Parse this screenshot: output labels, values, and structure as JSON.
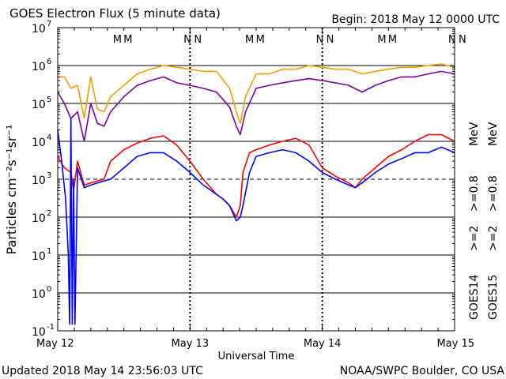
{
  "header": {
    "title": "GOES Electron Flux (5 minute data)",
    "begin": "Begin: 2018 May 12 0000 UTC"
  },
  "footer": {
    "updated": "Updated 2018 May 14 23:56:03 UTC",
    "credit": "NOAA/SWPC Boulder, CO USA"
  },
  "colors": {
    "goes14_2mev": "#0000ff",
    "goes15_2mev": "#ff0000",
    "goes14_08mev": "#7a00a0",
    "goes15_08mev": "#f0a000",
    "marker_m": "#0000ff",
    "marker_n_first": "#0000ff",
    "marker_n_second": "#ff0000"
  },
  "chart_data": {
    "type": "line",
    "xlabel": "Universal Time",
    "ylabel": "Particles cm⁻²s⁻¹sr⁻¹",
    "x_unit": "days since 2018 May 12 0000 UTC",
    "xlim": [
      0,
      3
    ],
    "ylim": [
      0.1,
      10000000
    ],
    "yscale": "log",
    "x_ticks": [
      {
        "x": 0,
        "label": "May 12"
      },
      {
        "x": 1,
        "label": "May 13"
      },
      {
        "x": 2,
        "label": "May 14"
      },
      {
        "x": 3,
        "label": "May 15"
      }
    ],
    "y_ticks": [
      {
        "exp": -1,
        "label": "10"
      },
      {
        "exp": 0,
        "label": "10"
      },
      {
        "exp": 1,
        "label": "10"
      },
      {
        "exp": 2,
        "label": "10"
      },
      {
        "exp": 3,
        "label": "10"
      },
      {
        "exp": 4,
        "label": "10"
      },
      {
        "exp": 5,
        "label": "10"
      },
      {
        "exp": 6,
        "label": "10"
      },
      {
        "exp": 7,
        "label": "10"
      }
    ],
    "y_tick_exponents": [
      "-1",
      "0",
      "1",
      "2",
      "3",
      "4",
      "5",
      "6",
      "7"
    ],
    "threshold_line": 1000,
    "markers": [
      {
        "x": 0.43,
        "label": "M",
        "color": "#0000ff"
      },
      {
        "x": 0.5,
        "label": "M",
        "color": "#ff0000"
      },
      {
        "x": 0.96,
        "label": "N",
        "color": "#0000ff"
      },
      {
        "x": 1.03,
        "label": "N",
        "color": "#ff0000"
      },
      {
        "x": 1.43,
        "label": "M",
        "color": "#0000ff"
      },
      {
        "x": 1.5,
        "label": "M",
        "color": "#ff0000"
      },
      {
        "x": 1.96,
        "label": "N",
        "color": "#0000ff"
      },
      {
        "x": 2.03,
        "label": "N",
        "color": "#ff0000"
      },
      {
        "x": 2.43,
        "label": "M",
        "color": "#0000ff"
      },
      {
        "x": 2.5,
        "label": "M",
        "color": "#ff0000"
      },
      {
        "x": 2.96,
        "label": "N",
        "color": "#0000ff"
      },
      {
        "x": 3.03,
        "label": "N",
        "color": "#ff0000"
      }
    ],
    "legend": {
      "placement": "right",
      "groups": [
        {
          "label": "GOES14",
          "items": [
            {
              "label": ">=2",
              "color": "#0000ff"
            },
            {
              "label": ">=0.8",
              "color": "#7a00a0"
            }
          ],
          "unit": "MeV"
        },
        {
          "label": "GOES15",
          "items": [
            {
              "label": ">=2",
              "color": "#ff0000"
            },
            {
              "label": ">=0.8",
              "color": "#f0a000"
            }
          ],
          "unit": "MeV"
        }
      ]
    },
    "series": [
      {
        "name": "GOES15 >=0.8 MeV",
        "color": "#f0a000",
        "x": [
          0.0,
          0.05,
          0.1,
          0.15,
          0.2,
          0.25,
          0.3,
          0.35,
          0.4,
          0.5,
          0.6,
          0.7,
          0.8,
          0.9,
          1.0,
          1.1,
          1.2,
          1.3,
          1.35,
          1.38,
          1.42,
          1.5,
          1.6,
          1.7,
          1.8,
          1.9,
          2.0,
          2.1,
          2.2,
          2.3,
          2.4,
          2.5,
          2.6,
          2.7,
          2.8,
          2.9,
          3.0
        ],
        "values": [
          500000,
          500000,
          250000,
          300000,
          40000,
          500000,
          70000,
          60000,
          150000,
          300000,
          600000,
          800000,
          1000000,
          900000,
          800000,
          700000,
          700000,
          250000,
          60000,
          30000,
          150000,
          600000,
          600000,
          800000,
          800000,
          1000000,
          900000,
          800000,
          800000,
          600000,
          700000,
          800000,
          900000,
          900000,
          1000000,
          1100000,
          900000
        ]
      },
      {
        "name": "GOES14 >=0.8 MeV",
        "color": "#7a00a0",
        "x": [
          0.0,
          0.05,
          0.1,
          0.15,
          0.2,
          0.25,
          0.3,
          0.35,
          0.4,
          0.5,
          0.6,
          0.7,
          0.8,
          0.9,
          1.0,
          1.1,
          1.2,
          1.3,
          1.35,
          1.38,
          1.42,
          1.5,
          1.6,
          1.7,
          1.8,
          1.9,
          2.0,
          2.1,
          2.2,
          2.3,
          2.4,
          2.5,
          2.6,
          2.7,
          2.8,
          2.9,
          3.0
        ],
        "values": [
          200000,
          100000,
          40000,
          60000,
          10000,
          100000,
          30000,
          25000,
          60000,
          150000,
          300000,
          400000,
          500000,
          350000,
          300000,
          250000,
          200000,
          80000,
          25000,
          15000,
          60000,
          250000,
          300000,
          350000,
          400000,
          450000,
          400000,
          350000,
          300000,
          200000,
          300000,
          400000,
          500000,
          500000,
          600000,
          700000,
          600000
        ]
      },
      {
        "name": "GOES15 >=2 MeV",
        "color": "#ff0000",
        "x": [
          0.0,
          0.05,
          0.1,
          0.12,
          0.15,
          0.2,
          0.25,
          0.3,
          0.35,
          0.4,
          0.5,
          0.6,
          0.7,
          0.8,
          0.9,
          1.0,
          1.1,
          1.2,
          1.25,
          1.3,
          1.35,
          1.38,
          1.4,
          1.45,
          1.5,
          1.6,
          1.7,
          1.8,
          1.9,
          2.0,
          2.1,
          2.2,
          2.25,
          2.3,
          2.4,
          2.5,
          2.6,
          2.7,
          2.8,
          2.9,
          3.0
        ],
        "values": [
          4000,
          2000,
          1500,
          500,
          3000,
          700,
          800,
          900,
          1000,
          3000,
          6000,
          9000,
          12000,
          14000,
          8000,
          3000,
          1000,
          400,
          300,
          200,
          100,
          200,
          1500,
          5000,
          6000,
          8000,
          10000,
          12000,
          8000,
          2000,
          1200,
          800,
          600,
          1000,
          2000,
          4000,
          6000,
          10000,
          15000,
          15000,
          10000
        ]
      },
      {
        "name": "GOES14 >=2 MeV",
        "color": "#0000ff",
        "x": [
          0.0,
          0.03,
          0.06,
          0.08,
          0.09,
          0.1,
          0.11,
          0.12,
          0.13,
          0.15,
          0.2,
          0.25,
          0.3,
          0.35,
          0.4,
          0.5,
          0.6,
          0.7,
          0.8,
          0.9,
          1.0,
          1.1,
          1.2,
          1.25,
          1.3,
          1.35,
          1.38,
          1.4,
          1.45,
          1.5,
          1.6,
          1.7,
          1.8,
          1.9,
          2.0,
          2.1,
          2.2,
          2.25,
          2.3,
          2.4,
          2.5,
          2.6,
          2.7,
          2.8,
          2.9,
          3.0
        ],
        "values": [
          20000,
          3000,
          300,
          10,
          0.15,
          40000,
          0.15,
          1000,
          0.15,
          2000,
          600,
          700,
          800,
          900,
          1000,
          2000,
          4000,
          5000,
          5000,
          3000,
          1500,
          700,
          400,
          300,
          200,
          80,
          100,
          200,
          1500,
          4000,
          5000,
          6000,
          5000,
          3000,
          1500,
          1000,
          700,
          600,
          800,
          1500,
          2500,
          3500,
          5000,
          5000,
          7000,
          5000
        ]
      }
    ]
  }
}
